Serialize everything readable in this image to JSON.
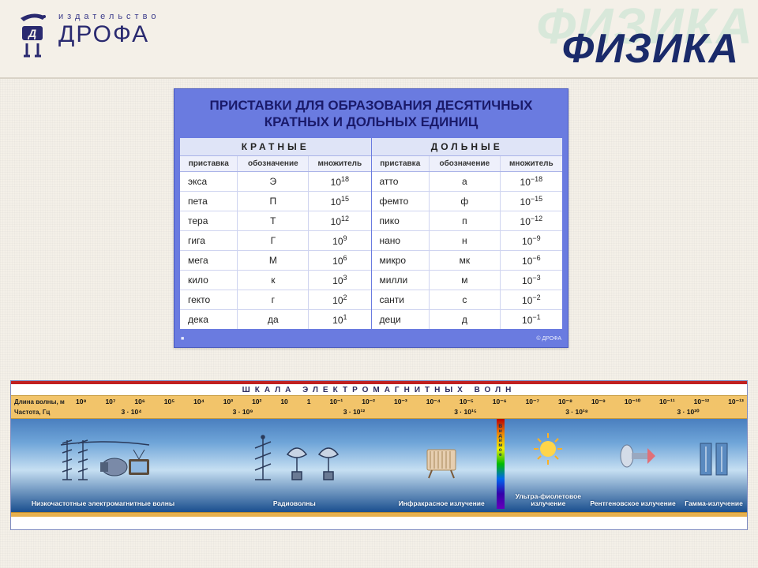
{
  "header": {
    "publisher_small": "издательство",
    "publisher_big": "ДРОФА",
    "title_shadow": "ФИЗИКА",
    "title_main": "ФИЗИКА",
    "logo_color": "#2a2a70"
  },
  "poster": {
    "bg_color": "#6a7be0",
    "title": "ПРИСТАВКИ ДЛЯ ОБРАЗОВАНИЯ ДЕСЯТИЧНЫХ КРАТНЫХ И ДОЛЬНЫХ ЕДИНИЦ",
    "left_caption": "КРАТНЫЕ",
    "right_caption": "ДОЛЬНЫЕ",
    "columns": [
      "приставка",
      "обозначение",
      "множитель"
    ],
    "left_rows": [
      {
        "prefix": "экса",
        "symbol": "Э",
        "base": "10",
        "exp": "18"
      },
      {
        "prefix": "пета",
        "symbol": "П",
        "base": "10",
        "exp": "15"
      },
      {
        "prefix": "тера",
        "symbol": "Т",
        "base": "10",
        "exp": "12"
      },
      {
        "prefix": "гига",
        "symbol": "Г",
        "base": "10",
        "exp": "9"
      },
      {
        "prefix": "мега",
        "symbol": "М",
        "base": "10",
        "exp": "6"
      },
      {
        "prefix": "кило",
        "symbol": "к",
        "base": "10",
        "exp": "3"
      },
      {
        "prefix": "гекто",
        "symbol": "г",
        "base": "10",
        "exp": "2"
      },
      {
        "prefix": "дека",
        "symbol": "да",
        "base": "10",
        "exp": "1"
      }
    ],
    "right_rows": [
      {
        "prefix": "атто",
        "symbol": "а",
        "base": "10",
        "exp": "−18"
      },
      {
        "prefix": "фемто",
        "symbol": "ф",
        "base": "10",
        "exp": "−15"
      },
      {
        "prefix": "пико",
        "symbol": "п",
        "base": "10",
        "exp": "−12"
      },
      {
        "prefix": "нано",
        "symbol": "н",
        "base": "10",
        "exp": "−9"
      },
      {
        "prefix": "микро",
        "symbol": "мк",
        "base": "10",
        "exp": "−6"
      },
      {
        "prefix": "милли",
        "symbol": "м",
        "base": "10",
        "exp": "−3"
      },
      {
        "prefix": "санти",
        "symbol": "с",
        "base": "10",
        "exp": "−2"
      },
      {
        "prefix": "деци",
        "symbol": "д",
        "base": "10",
        "exp": "−1"
      }
    ],
    "footer_left": "■",
    "footer_right": "© ДРОФА"
  },
  "spectrum": {
    "title": "ШКАЛА   ЭЛЕКТРОМАГНИТНЫХ   ВОЛН",
    "wavelength_label": "Длина волны, м",
    "frequency_label": "Частота, Гц",
    "scale_bg": "#f2c46a",
    "wavelengths": [
      "10⁸",
      "10⁷",
      "10⁶",
      "10⁵",
      "10⁴",
      "10³",
      "10²",
      "10",
      "1",
      "10⁻¹",
      "10⁻²",
      "10⁻³",
      "10⁻⁴",
      "10⁻⁵",
      "10⁻⁶",
      "10⁻⁷",
      "10⁻⁸",
      "10⁻⁹",
      "10⁻¹⁰",
      "10⁻¹¹",
      "10⁻¹²",
      "10⁻¹³"
    ],
    "frequencies": [
      "3 · 10⁴",
      "3 · 10⁹",
      "3 · 10¹²",
      "3 · 10¹⁵",
      "3 · 10¹⁸",
      "3 · 10²⁰"
    ],
    "bands": [
      {
        "key": "lowfreq",
        "label": "Низкочастотные электромагнитные волны",
        "width": "25%"
      },
      {
        "key": "radio",
        "label": "Радиоволны",
        "width": "27%"
      },
      {
        "key": "infrared",
        "label": "Инфракрасное излучение",
        "width": "13%"
      },
      {
        "key": "visible",
        "label": "Видимое излучение",
        "width": "3%"
      },
      {
        "key": "uv",
        "label": "Ультра-фиолетовое излучение",
        "width": "10%"
      },
      {
        "key": "xray",
        "label": "Рентгеновское излучение",
        "width": "13%"
      },
      {
        "key": "gamma",
        "label": "Гамма-излучение",
        "width": "9%"
      }
    ]
  }
}
